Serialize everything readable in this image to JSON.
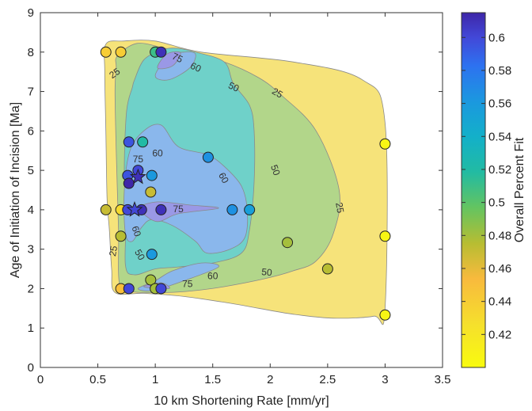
{
  "chart_data": {
    "type": "scatter",
    "title": "",
    "xlabel": "10 km Shortening Rate [mm/yr]",
    "ylabel": "Age of Initiation of Incision [Ma]",
    "xlim": [
      0,
      3.5
    ],
    "ylim": [
      0,
      9
    ],
    "xticks": [
      "0",
      "0.5",
      "1",
      "1.5",
      "2",
      "2.5",
      "3",
      "3.5"
    ],
    "yticks": [
      "0",
      "1",
      "2",
      "3",
      "4",
      "5",
      "6",
      "7",
      "8",
      "9"
    ],
    "grid": false,
    "colorbar": {
      "label": "Overall Percent Fit",
      "range": [
        0.4,
        0.615
      ],
      "ticks": [
        "0.42",
        "0.44",
        "0.46",
        "0.48",
        "0.5",
        "0.52",
        "0.54",
        "0.56",
        "0.58",
        "0.6"
      ]
    },
    "contour_levels": [
      {
        "level": 25,
        "color": "#f6e37a",
        "outline": [
          [
            0.57,
            8.2
          ],
          [
            0.72,
            8.28
          ],
          [
            1.0,
            8.28
          ],
          [
            1.4,
            8.0
          ],
          [
            2.2,
            7.75
          ],
          [
            2.8,
            7.3
          ],
          [
            3.0,
            6.2
          ],
          [
            3.0,
            1.5
          ],
          [
            2.9,
            1.3
          ],
          [
            2.55,
            1.25
          ],
          [
            2.2,
            1.35
          ],
          [
            1.9,
            1.5
          ],
          [
            1.65,
            1.63
          ],
          [
            1.25,
            1.8
          ],
          [
            0.9,
            1.88
          ],
          [
            0.65,
            1.9
          ],
          [
            0.62,
            2.5
          ],
          [
            0.6,
            3.5
          ],
          [
            0.58,
            4.3
          ],
          [
            0.57,
            6.0
          ],
          [
            0.56,
            7.5
          ]
        ]
      },
      {
        "level": 50,
        "color": "#b2d68a",
        "outline": [
          [
            0.67,
            7.9
          ],
          [
            0.84,
            8.22
          ],
          [
            1.08,
            8.1
          ],
          [
            1.3,
            7.95
          ],
          [
            1.6,
            7.75
          ],
          [
            1.9,
            7.35
          ],
          [
            2.1,
            6.9
          ],
          [
            2.4,
            6.0
          ],
          [
            2.6,
            4.5
          ],
          [
            2.55,
            3.4
          ],
          [
            2.4,
            2.7
          ],
          [
            2.2,
            2.45
          ],
          [
            1.95,
            2.25
          ],
          [
            1.6,
            2.05
          ],
          [
            1.35,
            1.95
          ],
          [
            1.1,
            1.9
          ],
          [
            0.8,
            1.92
          ],
          [
            0.69,
            2.1
          ],
          [
            0.68,
            3.5
          ],
          [
            0.66,
            5.5
          ],
          [
            0.65,
            7.0
          ],
          [
            0.66,
            7.6
          ]
        ]
      },
      {
        "level": 60,
        "color": "#6fd1c9",
        "outline": [
          [
            0.82,
            7.3
          ],
          [
            0.9,
            7.8
          ],
          [
            1.05,
            8.05
          ],
          [
            1.18,
            8.1
          ],
          [
            1.35,
            8.0
          ],
          [
            1.6,
            7.75
          ],
          [
            1.68,
            7.2
          ],
          [
            1.82,
            6.65
          ],
          [
            1.86,
            6.0
          ],
          [
            1.86,
            4.7
          ],
          [
            1.82,
            3.5
          ],
          [
            1.75,
            2.9
          ],
          [
            1.5,
            2.65
          ],
          [
            1.2,
            2.55
          ],
          [
            1.0,
            2.5
          ],
          [
            0.82,
            2.35
          ],
          [
            0.74,
            2.6
          ],
          [
            0.75,
            4.0
          ],
          [
            0.73,
            5.0
          ],
          [
            0.75,
            6.5
          ],
          [
            0.8,
            7.1
          ]
        ]
      },
      {
        "level": 75,
        "color": "#8ab7ec",
        "outline": [
          [
            0.9,
            6.0
          ],
          [
            1.05,
            6.15
          ],
          [
            1.2,
            5.6
          ],
          [
            1.45,
            5.4
          ],
          [
            1.6,
            5.1
          ],
          [
            1.75,
            4.6
          ],
          [
            1.8,
            4.0
          ],
          [
            1.78,
            3.3
          ],
          [
            1.65,
            3.0
          ],
          [
            1.45,
            2.9
          ],
          [
            1.35,
            3.2
          ],
          [
            1.15,
            3.6
          ],
          [
            0.97,
            3.75
          ],
          [
            0.88,
            3.55
          ],
          [
            0.8,
            3.2
          ],
          [
            0.74,
            3.4
          ],
          [
            0.73,
            4.5
          ],
          [
            0.78,
            5.5
          ]
        ]
      },
      {
        "level": 75,
        "color": "#8ab7ec",
        "outline": [
          [
            1.0,
            7.4
          ],
          [
            1.12,
            7.9
          ],
          [
            1.25,
            8.0
          ],
          [
            1.35,
            7.95
          ],
          [
            1.3,
            7.6
          ],
          [
            1.12,
            7.3
          ]
        ]
      },
      {
        "level": 75,
        "color": "#8ab7ec",
        "outline": [
          [
            0.85,
            2.0
          ],
          [
            1.0,
            2.2
          ],
          [
            1.15,
            2.45
          ],
          [
            1.4,
            2.65
          ],
          [
            1.55,
            2.55
          ],
          [
            1.25,
            2.2
          ],
          [
            0.98,
            1.95
          ]
        ]
      },
      {
        "level": 90,
        "color": "#9a98e6",
        "outline": [
          [
            0.84,
            4.05
          ],
          [
            1.02,
            4.2
          ],
          [
            1.3,
            4.12
          ],
          [
            1.55,
            4.04
          ],
          [
            1.2,
            3.9
          ],
          [
            1.02,
            3.7
          ],
          [
            0.88,
            3.93
          ]
        ]
      },
      {
        "level": 90,
        "color": "#9a98e6",
        "outline": [
          [
            1.02,
            7.6
          ],
          [
            1.1,
            7.95
          ],
          [
            1.22,
            7.98
          ],
          [
            1.15,
            7.65
          ]
        ]
      },
      {
        "level": 90,
        "color": "#9a98e6",
        "outline": [
          [
            0.9,
            2.05
          ],
          [
            1.05,
            2.15
          ],
          [
            1.12,
            2.0
          ]
        ]
      }
    ],
    "contour_labels": [
      {
        "text": "25",
        "x": 0.65,
        "y": 7.45,
        "angle": -35
      },
      {
        "text": "75",
        "x": 1.19,
        "y": 7.84,
        "angle": 25
      },
      {
        "text": "60",
        "x": 1.35,
        "y": 7.6,
        "angle": 25
      },
      {
        "text": "50",
        "x": 1.68,
        "y": 7.1,
        "angle": 25
      },
      {
        "text": "25",
        "x": 2.06,
        "y": 6.95,
        "angle": 30
      },
      {
        "text": "60",
        "x": 1.02,
        "y": 5.42,
        "angle": 0
      },
      {
        "text": "75",
        "x": 0.85,
        "y": 5.27,
        "angle": 0
      },
      {
        "text": "60",
        "x": 1.59,
        "y": 4.8,
        "angle": 60
      },
      {
        "text": "50",
        "x": 2.04,
        "y": 5.0,
        "angle": 70
      },
      {
        "text": "25",
        "x": 2.6,
        "y": 4.05,
        "angle": 80
      },
      {
        "text": "75",
        "x": 1.2,
        "y": 4.0,
        "angle": 0
      },
      {
        "text": "60",
        "x": 0.83,
        "y": 3.45,
        "angle": 70
      },
      {
        "text": "50",
        "x": 0.86,
        "y": 2.85,
        "angle": 60
      },
      {
        "text": "25",
        "x": 0.64,
        "y": 2.95,
        "angle": -80
      },
      {
        "text": "75",
        "x": 1.28,
        "y": 2.1,
        "angle": 0
      },
      {
        "text": "60",
        "x": 1.5,
        "y": 2.3,
        "angle": 0
      },
      {
        "text": "50",
        "x": 1.97,
        "y": 2.4,
        "angle": 5
      }
    ],
    "series": [
      {
        "marker": "circle",
        "points": [
          {
            "x": 0.57,
            "y": 8.0,
            "fit": 0.44
          },
          {
            "x": 0.7,
            "y": 8.0,
            "fit": 0.44
          },
          {
            "x": 1.0,
            "y": 8.0,
            "fit": 0.51
          },
          {
            "x": 1.05,
            "y": 8.0,
            "fit": 0.61
          },
          {
            "x": 0.77,
            "y": 5.72,
            "fit": 0.595
          },
          {
            "x": 0.89,
            "y": 5.72,
            "fit": 0.52
          },
          {
            "x": 1.46,
            "y": 5.33,
            "fit": 0.565
          },
          {
            "x": 0.85,
            "y": 5.0,
            "fit": 0.6
          },
          {
            "x": 0.76,
            "y": 4.87,
            "fit": 0.595
          },
          {
            "x": 0.97,
            "y": 4.87,
            "fit": 0.56
          },
          {
            "x": 0.77,
            "y": 4.67,
            "fit": 0.615
          },
          {
            "x": 0.96,
            "y": 4.45,
            "fit": 0.47
          },
          {
            "x": 0.57,
            "y": 4.0,
            "fit": 0.47
          },
          {
            "x": 0.7,
            "y": 4.0,
            "fit": 0.43
          },
          {
            "x": 0.76,
            "y": 4.0,
            "fit": 0.6
          },
          {
            "x": 0.88,
            "y": 4.0,
            "fit": 0.61
          },
          {
            "x": 1.05,
            "y": 4.0,
            "fit": 0.61
          },
          {
            "x": 1.67,
            "y": 4.0,
            "fit": 0.565
          },
          {
            "x": 1.82,
            "y": 4.0,
            "fit": 0.555
          },
          {
            "x": 0.7,
            "y": 3.33,
            "fit": 0.475
          },
          {
            "x": 2.15,
            "y": 3.17,
            "fit": 0.48
          },
          {
            "x": 0.97,
            "y": 2.87,
            "fit": 0.56
          },
          {
            "x": 2.5,
            "y": 2.5,
            "fit": 0.475
          },
          {
            "x": 0.96,
            "y": 2.22,
            "fit": 0.48
          },
          {
            "x": 0.7,
            "y": 2.0,
            "fit": 0.45
          },
          {
            "x": 0.77,
            "y": 2.0,
            "fit": 0.6
          },
          {
            "x": 1.0,
            "y": 2.0,
            "fit": 0.48
          },
          {
            "x": 1.05,
            "y": 2.0,
            "fit": 0.6
          },
          {
            "x": 3.0,
            "y": 5.67,
            "fit": 0.405
          },
          {
            "x": 3.0,
            "y": 3.33,
            "fit": 0.405
          },
          {
            "x": 3.0,
            "y": 1.33,
            "fit": 0.405
          }
        ]
      },
      {
        "marker": "star",
        "points": [
          {
            "x": 0.85,
            "y": 4.83,
            "fit": 0.61
          },
          {
            "x": 0.82,
            "y": 4.0,
            "fit": 0.6
          }
        ]
      }
    ]
  }
}
